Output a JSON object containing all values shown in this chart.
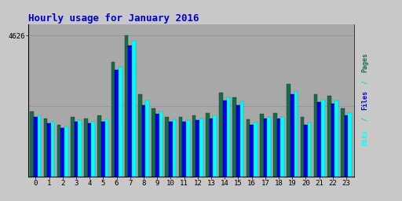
{
  "title": "Hourly usage for January 2016",
  "title_color": "#0000cc",
  "title_fontsize": 9,
  "y_max": 4626,
  "ytick_label": "4626",
  "x_labels": [
    "0",
    "1",
    "2",
    "3",
    "4",
    "5",
    "6",
    "7",
    "8",
    "9",
    "10",
    "11",
    "12",
    "13",
    "14",
    "15",
    "16",
    "17",
    "18",
    "19",
    "20",
    "21",
    "22",
    "23"
  ],
  "background_color": "#c8c8c8",
  "plot_bg_color": "#a8a8a8",
  "bar_width": 0.27,
  "colors": {
    "pages": "#1a6b4a",
    "files": "#0000ee",
    "hits": "#00ffff"
  },
  "pages": [
    2150,
    1900,
    1700,
    1950,
    1900,
    2000,
    3750,
    4626,
    2700,
    2250,
    1950,
    1950,
    2000,
    2100,
    2750,
    2600,
    1880,
    2050,
    2100,
    3050,
    1960,
    2700,
    2650,
    2250
  ],
  "files": [
    1950,
    1750,
    1600,
    1800,
    1750,
    1800,
    3500,
    4300,
    2350,
    2050,
    1800,
    1800,
    1850,
    1900,
    2500,
    2350,
    1700,
    1900,
    1900,
    2700,
    1700,
    2450,
    2400,
    2000
  ],
  "hits": [
    2000,
    1800,
    1650,
    1850,
    1800,
    1870,
    3600,
    4450,
    2500,
    2150,
    1870,
    1860,
    1900,
    2000,
    2600,
    2480,
    1780,
    1960,
    1970,
    2800,
    1780,
    2530,
    2500,
    2100
  ]
}
